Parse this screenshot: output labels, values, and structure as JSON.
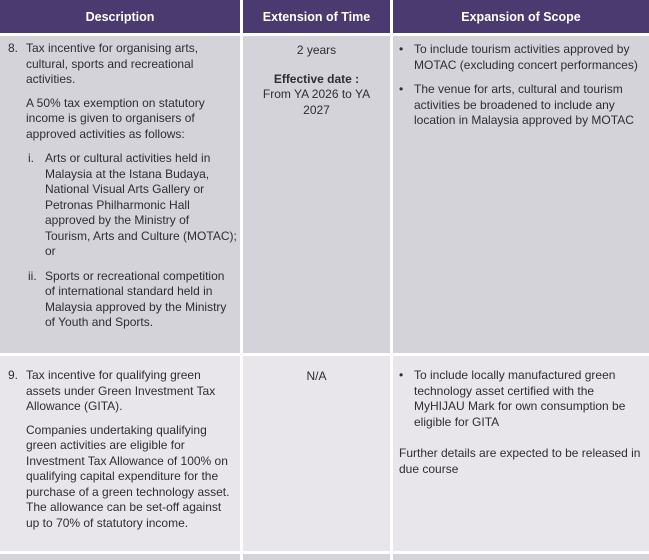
{
  "colors": {
    "header_bg": "#4b3a6f",
    "header_text": "#ffffff",
    "row_odd": "#d5d3da",
    "row_even": "#e8e6eb",
    "text": "#2e2e30",
    "gap": "#ffffff"
  },
  "table": {
    "headers": [
      "Description",
      "Extension of Time",
      "Expansion of Scope"
    ],
    "rows": [
      {
        "number": "8.",
        "intro": "Tax incentive for organising arts, cultural, sports and recreational activities.",
        "paragraph": "A 50% tax exemption on statutory income is given to organisers of approved activities as follows:",
        "items": [
          {
            "marker": "i.",
            "text": "Arts or cultural activities held in Malaysia at the Istana Budaya, National Visual Arts Gallery or Petronas Philharmonic Hall approved by the Ministry of Tourism, Arts and Culture (MOTAC); or"
          },
          {
            "marker": "ii.",
            "text": "Sports or recreational competition of international standard held in Malaysia approved by the Ministry of Youth and Sports."
          }
        ],
        "extension": {
          "duration": "2 years",
          "effective_label": "Effective date :",
          "effective_period": "From YA 2026 to YA 2027"
        },
        "scope": {
          "bullet_char": "•",
          "bullets": [
            "To include tourism activities approved by MOTAC (excluding concert performances)",
            "The venue for arts, cultural and tourism activities be broadened to include any location in Malaysia approved by MOTAC"
          ]
        }
      },
      {
        "number": "9.",
        "intro": "Tax incentive for qualifying green assets under Green Investment Tax Allowance (GITA).",
        "paragraph": "Companies undertaking qualifying green activities are eligible for Investment Tax Allowance of 100% on qualifying capital expenditure for the purchase of a green technology asset. The allowance can be set-off against up to 70% of statutory income.",
        "extension": {
          "duration": "N/A"
        },
        "scope": {
          "bullet_char": "•",
          "bullets": [
            "To include locally manufactured green technology asset certified with the MyHIJAU Mark for own consumption be eligible for GITA"
          ],
          "note": "Further details are expected to be released in due course"
        }
      }
    ]
  }
}
